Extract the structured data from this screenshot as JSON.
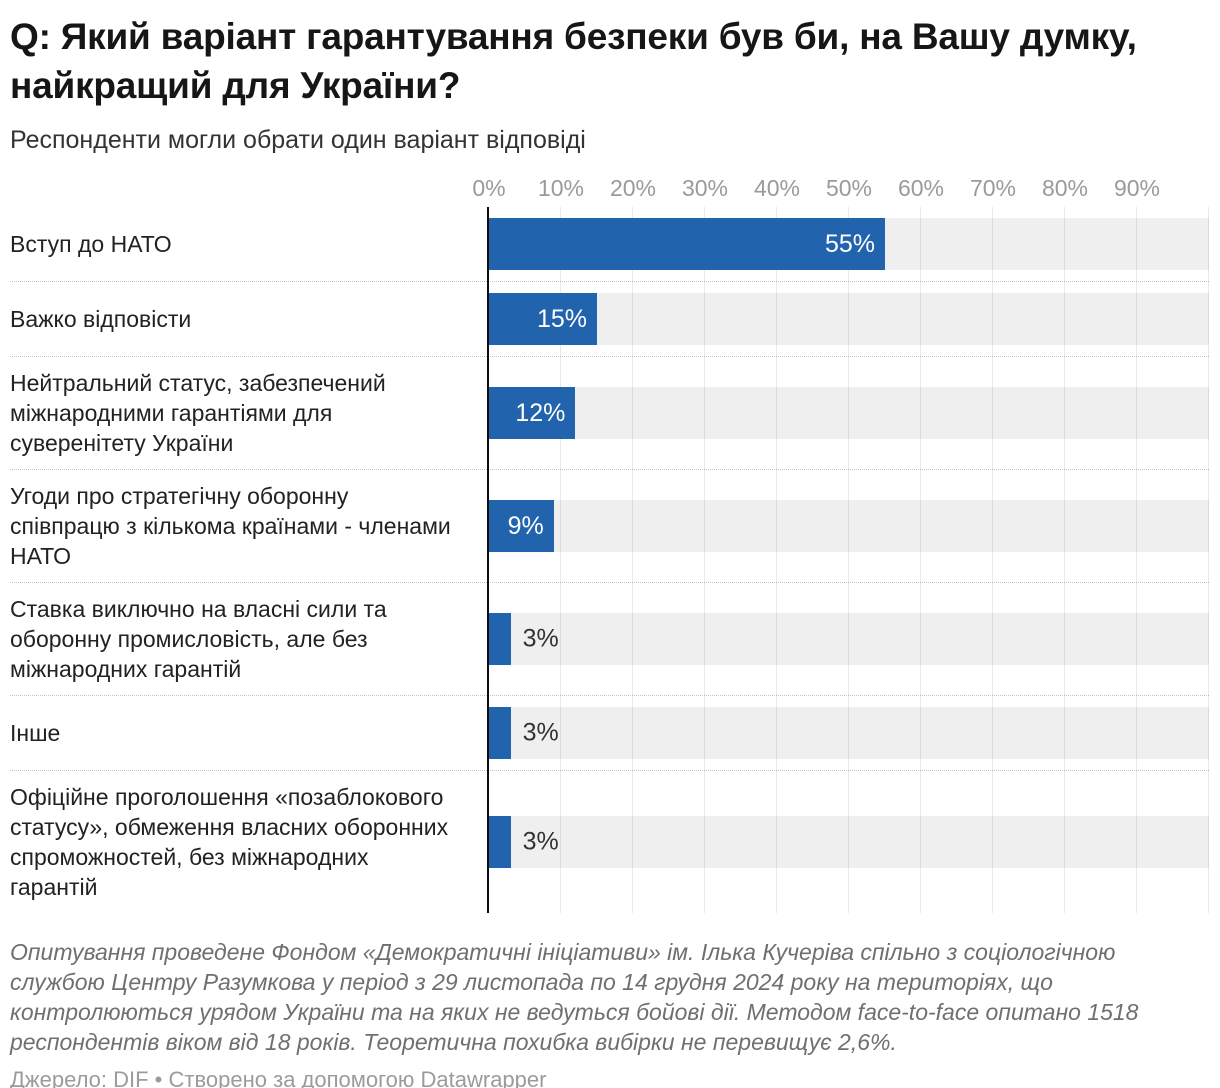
{
  "title": "Q: Який варіант гарантування безпеки був би, на Вашу думку, найкращий для України?",
  "subtitle": "Респонденти могли обрати один варіант відповіді",
  "chart_data": {
    "type": "bar",
    "orientation": "horizontal",
    "categories": [
      "Вступ до НАТО",
      "Важко відповісти",
      "Нейтральний статус, забезпечений міжнародними гарантіями для суверенітету України",
      "Угоди про стратегічну оборонну співпрацю з кількома країнами - членами НАТО",
      "Ставка виключно на власні сили та оборонну промисловість, але без міжнародних гарантій",
      "Інше",
      "Офіційне проголошення «позаблокового статусу», обмеження власних оборонних спроможностей, без міжнародних гарантій"
    ],
    "values": [
      55,
      15,
      12,
      9,
      3,
      3,
      3
    ],
    "value_labels": [
      "55%",
      "15%",
      "12%",
      "9%",
      "3%",
      "3%",
      "3%"
    ],
    "x_ticks": [
      "0%",
      "10%",
      "20%",
      "30%",
      "40%",
      "50%",
      "60%",
      "70%",
      "80%",
      "90%"
    ],
    "xlim": [
      0,
      100
    ],
    "grid": true,
    "legend": "none",
    "colors": {
      "bar": "#2163ac",
      "track": "#efefef",
      "axis_line": "#0c0c0c",
      "tick_text": "#9a9a9a",
      "value_inside": "#ffffff",
      "value_outside": "#333333"
    }
  },
  "notes": "Опитування проведене Фондом «Демократичні ініціативи» ім. Ілька Кучеріва спільно з соціологічною службою Центру Разумкова у період з 29 листопада по 14 грудня 2024 року на територіях, що контролюються урядом України та на яких не ведуться бойові дії. Методом face-to-face опитано 1518 респондентів віком від 18 років. Теоретична похибка вибірки не перевищує 2,6%.",
  "source": "Джерело: DIF • Створено за допомогою Datawrapper"
}
